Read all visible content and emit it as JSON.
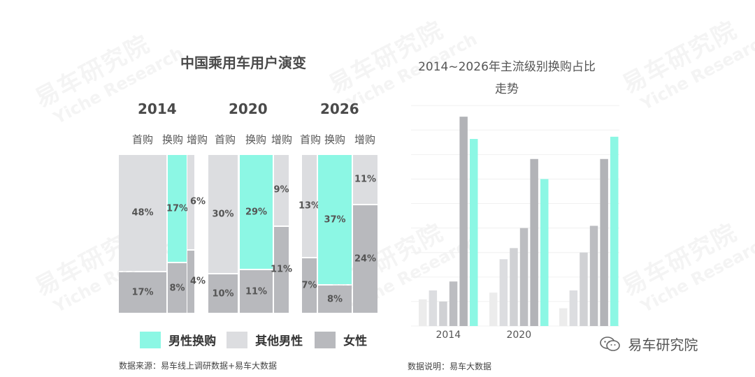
{
  "left_chart": {
    "title": "中国乘用车用户演变",
    "years": [
      "2014",
      "2020",
      "2026"
    ],
    "column_labels": [
      "首购",
      "换购",
      "增购"
    ],
    "legend": [
      {
        "label": "男性换购",
        "color": "#8cf7e4"
      },
      {
        "label": "其他男性",
        "color": "#dcdde0"
      },
      {
        "label": "女性",
        "color": "#b8b9bd"
      }
    ],
    "source": "数据来源：易车线上调研数据+易车大数据"
  },
  "right_chart": {
    "title_line1": "2014~2026年主流级别换购占比",
    "title_line2": "走势",
    "source": "数据说明：易车大数据"
  },
  "brand": {
    "name": "易车研究院"
  },
  "watermark": {
    "cn": "易车研究院",
    "en": "Yiche Research"
  },
  "chart_data": [
    {
      "type": "bar",
      "title": "中国乘用车用户演变",
      "stacked": true,
      "categories": [
        "2014",
        "2020",
        "2026"
      ],
      "columns": [
        "首购",
        "换购",
        "增购"
      ],
      "series": [
        {
          "name": "男性换购",
          "values": [
            [
              0,
              17,
              0
            ],
            [
              0,
              29,
              0
            ],
            [
              0,
              37,
              0
            ]
          ],
          "color": "#8cf7e4"
        },
        {
          "name": "其他男性",
          "values": [
            [
              48,
              0,
              6
            ],
            [
              30,
              0,
              9
            ],
            [
              13,
              0,
              11
            ]
          ],
          "color": "#dcdde0"
        },
        {
          "name": "女性",
          "values": [
            [
              17,
              8,
              4
            ],
            [
              10,
              11,
              11
            ],
            [
              7,
              8,
              24
            ]
          ],
          "color": "#b8b9bd"
        }
      ],
      "value_unit": "%"
    },
    {
      "type": "bar",
      "title": "2014~2026年主流级别换购占比走势",
      "categories": [
        "2014",
        "2020",
        ""
      ],
      "series_values": [
        [
          12,
          16,
          11,
          20,
          94,
          84
        ],
        [
          15,
          30,
          35,
          44,
          75,
          66
        ],
        [
          8,
          16,
          33,
          45,
          75,
          85
        ]
      ],
      "bar_colors": [
        "#ececec",
        "#dcdde0",
        "#d0d1d4",
        "#bcbdc1",
        "#b2b3b7",
        "#8cf7e4"
      ],
      "ylim": [
        0,
        100
      ],
      "grid": true
    }
  ]
}
